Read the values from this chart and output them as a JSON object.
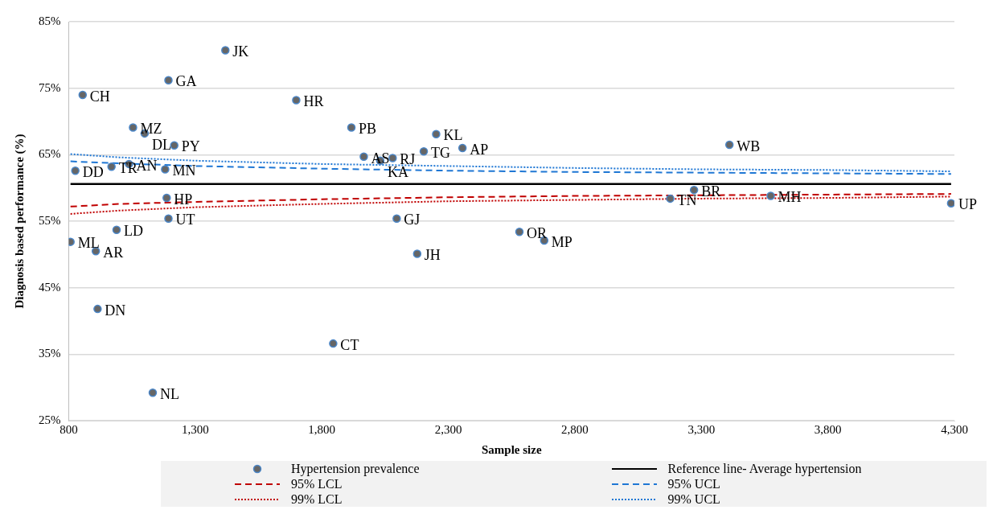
{
  "chart_data": {
    "type": "scatter",
    "xlabel": "Sample size",
    "ylabel": "Diagnosis based performance (%)",
    "xlim": [
      800,
      4300
    ],
    "xticks": [
      {
        "value": 800,
        "label": "800"
      },
      {
        "value": 1300,
        "label": "1,300"
      },
      {
        "value": 1800,
        "label": "1,800"
      },
      {
        "value": 2300,
        "label": "2,300"
      },
      {
        "value": 2800,
        "label": "2,800"
      },
      {
        "value": 3300,
        "label": "3,300"
      },
      {
        "value": 3800,
        "label": "3,800"
      },
      {
        "value": 4300,
        "label": "4,300"
      }
    ],
    "ylim": [
      25,
      85
    ],
    "yticks": [
      {
        "value": 25,
        "label": "25%"
      },
      {
        "value": 35,
        "label": "35%"
      },
      {
        "value": 45,
        "label": "45%"
      },
      {
        "value": 55,
        "label": "55%"
      },
      {
        "value": 65,
        "label": "65%"
      },
      {
        "value": 75,
        "label": "75%"
      },
      {
        "value": 85,
        "label": "85%"
      }
    ],
    "grid": "y",
    "legend": "bottom",
    "series": [
      {
        "name": "Hypertension prevalence",
        "marker": "circle",
        "color": "#666666",
        "x": [
          1419,
          1194,
          855,
          1699,
          1054,
          1100,
          1217,
          826,
          969,
          1038,
          1181,
          1187,
          1194,
          989,
          807,
          907,
          914,
          1132,
          1845,
          1917,
          2252,
          2203,
          2356,
          1966,
          2031,
          2080,
          2096,
          2177,
          2581,
          2679,
          3411,
          3271,
          3177,
          3574,
          4287
        ],
        "values": [
          80.7,
          76.2,
          74.0,
          73.2,
          69.1,
          68.2,
          66.4,
          62.6,
          63.2,
          63.6,
          62.8,
          58.5,
          55.4,
          53.7,
          51.9,
          50.5,
          41.8,
          29.2,
          36.6,
          69.1,
          68.1,
          65.5,
          66.0,
          64.7,
          64.1,
          64.5,
          55.4,
          50.1,
          53.4,
          52.1,
          66.5,
          59.7,
          58.4,
          58.8,
          57.7
        ]
      },
      {
        "type": "line",
        "name": "Reference line- Average hypertension",
        "color": "#000000",
        "line_style": "solid",
        "x": [
          807,
          4287
        ],
        "values": [
          60.6,
          60.6
        ]
      },
      {
        "type": "line",
        "name": "95% LCL",
        "color": "#c00000",
        "line_style": "dashed",
        "x": [
          807,
          1000,
          1300,
          1800,
          2300,
          2800,
          3300,
          3800,
          4287
        ],
        "values": [
          57.2,
          57.6,
          57.9,
          58.3,
          58.6,
          58.8,
          58.9,
          59.0,
          59.1
        ]
      },
      {
        "type": "line",
        "name": "95% UCL",
        "color": "#1f77d4",
        "line_style": "dashed",
        "x": [
          807,
          1000,
          1300,
          1800,
          2300,
          2800,
          3300,
          3800,
          4287
        ],
        "values": [
          64.0,
          63.7,
          63.3,
          62.9,
          62.6,
          62.4,
          62.3,
          62.2,
          62.1
        ]
      },
      {
        "type": "line",
        "name": "99% LCL",
        "color": "#c00000",
        "line_style": "dotted",
        "x": [
          807,
          1000,
          1300,
          1800,
          2300,
          2800,
          3300,
          3800,
          4287
        ],
        "values": [
          56.1,
          56.6,
          57.1,
          57.6,
          58.0,
          58.2,
          58.4,
          58.5,
          58.7
        ]
      },
      {
        "type": "line",
        "name": "99% UCL",
        "color": "#1f77d4",
        "line_style": "dotted",
        "x": [
          807,
          1000,
          1300,
          1800,
          2300,
          2800,
          3300,
          3800,
          4287
        ],
        "values": [
          65.1,
          64.6,
          64.1,
          63.6,
          63.3,
          63.0,
          62.8,
          62.7,
          62.5
        ]
      }
    ],
    "annotations": [
      {
        "text": "JK",
        "x": 1419,
        "y": 80.7
      },
      {
        "text": "GA",
        "x": 1194,
        "y": 76.2
      },
      {
        "text": "CH",
        "x": 855,
        "y": 74.0
      },
      {
        "text": "HR",
        "x": 1699,
        "y": 73.2
      },
      {
        "text": "MZ",
        "x": 1054,
        "y": 69.1
      },
      {
        "text": "DL",
        "x": 1100,
        "y": 68.2
      },
      {
        "text": "PY",
        "x": 1217,
        "y": 66.4
      },
      {
        "text": "DD",
        "x": 826,
        "y": 62.6
      },
      {
        "text": "TR",
        "x": 969,
        "y": 63.2
      },
      {
        "text": "AN",
        "x": 1038,
        "y": 63.6
      },
      {
        "text": "MN",
        "x": 1181,
        "y": 62.8
      },
      {
        "text": "HP",
        "x": 1187,
        "y": 58.5
      },
      {
        "text": "UT",
        "x": 1194,
        "y": 55.4
      },
      {
        "text": "LD",
        "x": 989,
        "y": 53.7
      },
      {
        "text": "ML",
        "x": 807,
        "y": 51.9
      },
      {
        "text": "AR",
        "x": 907,
        "y": 50.5
      },
      {
        "text": "DN",
        "x": 914,
        "y": 41.8
      },
      {
        "text": "NL",
        "x": 1132,
        "y": 29.2
      },
      {
        "text": "CT",
        "x": 1845,
        "y": 36.6
      },
      {
        "text": "PB",
        "x": 1917,
        "y": 69.1
      },
      {
        "text": "KL",
        "x": 2252,
        "y": 68.1
      },
      {
        "text": "TG",
        "x": 2203,
        "y": 65.5
      },
      {
        "text": "AP",
        "x": 2356,
        "y": 66.0
      },
      {
        "text": "AS",
        "x": 1966,
        "y": 64.7
      },
      {
        "text": "KA",
        "x": 2031,
        "y": 64.1
      },
      {
        "text": "RJ",
        "x": 2080,
        "y": 64.5
      },
      {
        "text": "GJ",
        "x": 2096,
        "y": 55.4
      },
      {
        "text": "JH",
        "x": 2177,
        "y": 50.1
      },
      {
        "text": "OR",
        "x": 2581,
        "y": 53.4
      },
      {
        "text": "MP",
        "x": 2679,
        "y": 52.1
      },
      {
        "text": "WB",
        "x": 3411,
        "y": 66.5
      },
      {
        "text": "BR",
        "x": 3271,
        "y": 59.7
      },
      {
        "text": "TN",
        "x": 3177,
        "y": 58.4
      },
      {
        "text": "MH",
        "x": 3574,
        "y": 58.8
      },
      {
        "text": "UP",
        "x": 4287,
        "y": 57.7
      }
    ]
  }
}
